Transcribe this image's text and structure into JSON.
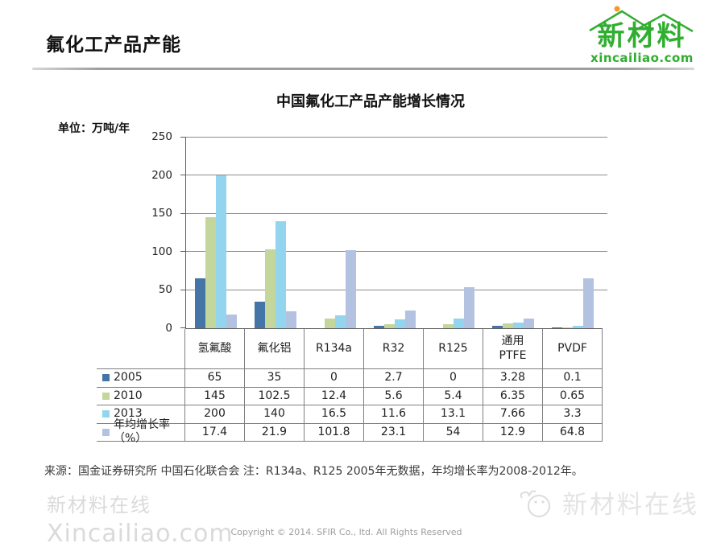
{
  "page": {
    "title": "氟化工产品产能",
    "source_note": "来源：国金证券研究所 中国石化联合会 注：R134a、R125 2005年无数据，年均增长率为2008-2012年。",
    "copyright": "Copyright © 2014. SFIR Co., ltd. All Rights Reserved"
  },
  "logo": {
    "name": "新材料",
    "domain": "xincailiao.com",
    "green": "#2fae2f",
    "orange": "#f59a23",
    "icon": "mountain-roof-icon"
  },
  "chart": {
    "title": "中国氟化工产品产能增长情况",
    "unit_label": "单位：万吨/年",
    "y_ticks": [
      0,
      50,
      100,
      150,
      200,
      250
    ]
  },
  "chart_data": {
    "type": "bar",
    "title": "中国氟化工产品产能增长情况",
    "ylabel": "单位：万吨/年",
    "ylim": [
      0,
      250
    ],
    "grid": true,
    "legend_position": "table-left",
    "categories": [
      "氢氟酸",
      "氟化铝",
      "R134a",
      "R32",
      "R125",
      "通用PTFE",
      "PVDF"
    ],
    "series": [
      {
        "name": "2005",
        "color": "#4574a6",
        "values": [
          65,
          35,
          0,
          2.7,
          0,
          3.28,
          0.1
        ]
      },
      {
        "name": "2010",
        "color": "#c3d69b",
        "values": [
          145,
          102.5,
          12.4,
          5.6,
          5.4,
          6.35,
          0.65
        ]
      },
      {
        "name": "2013",
        "color": "#93d5ee",
        "values": [
          200,
          140,
          16.5,
          11.6,
          13.1,
          7.66,
          3.3
        ]
      },
      {
        "name": "年均增长率（%）",
        "color": "#b3c2e0",
        "values": [
          17.4,
          21.9,
          101.8,
          23.1,
          54,
          12.9,
          64.8
        ]
      }
    ]
  },
  "table": {
    "col_headers": [
      "氢氟酸",
      "氟化铝",
      "R134a",
      "R32",
      "R125",
      "通用\nPTFE",
      "PVDF"
    ]
  },
  "watermark_left": {
    "line1": "新材料在线",
    "line2": "Xincailiao.com"
  },
  "watermark_right": {
    "text": "新材料在线",
    "icon": "mascot-face-icon"
  }
}
